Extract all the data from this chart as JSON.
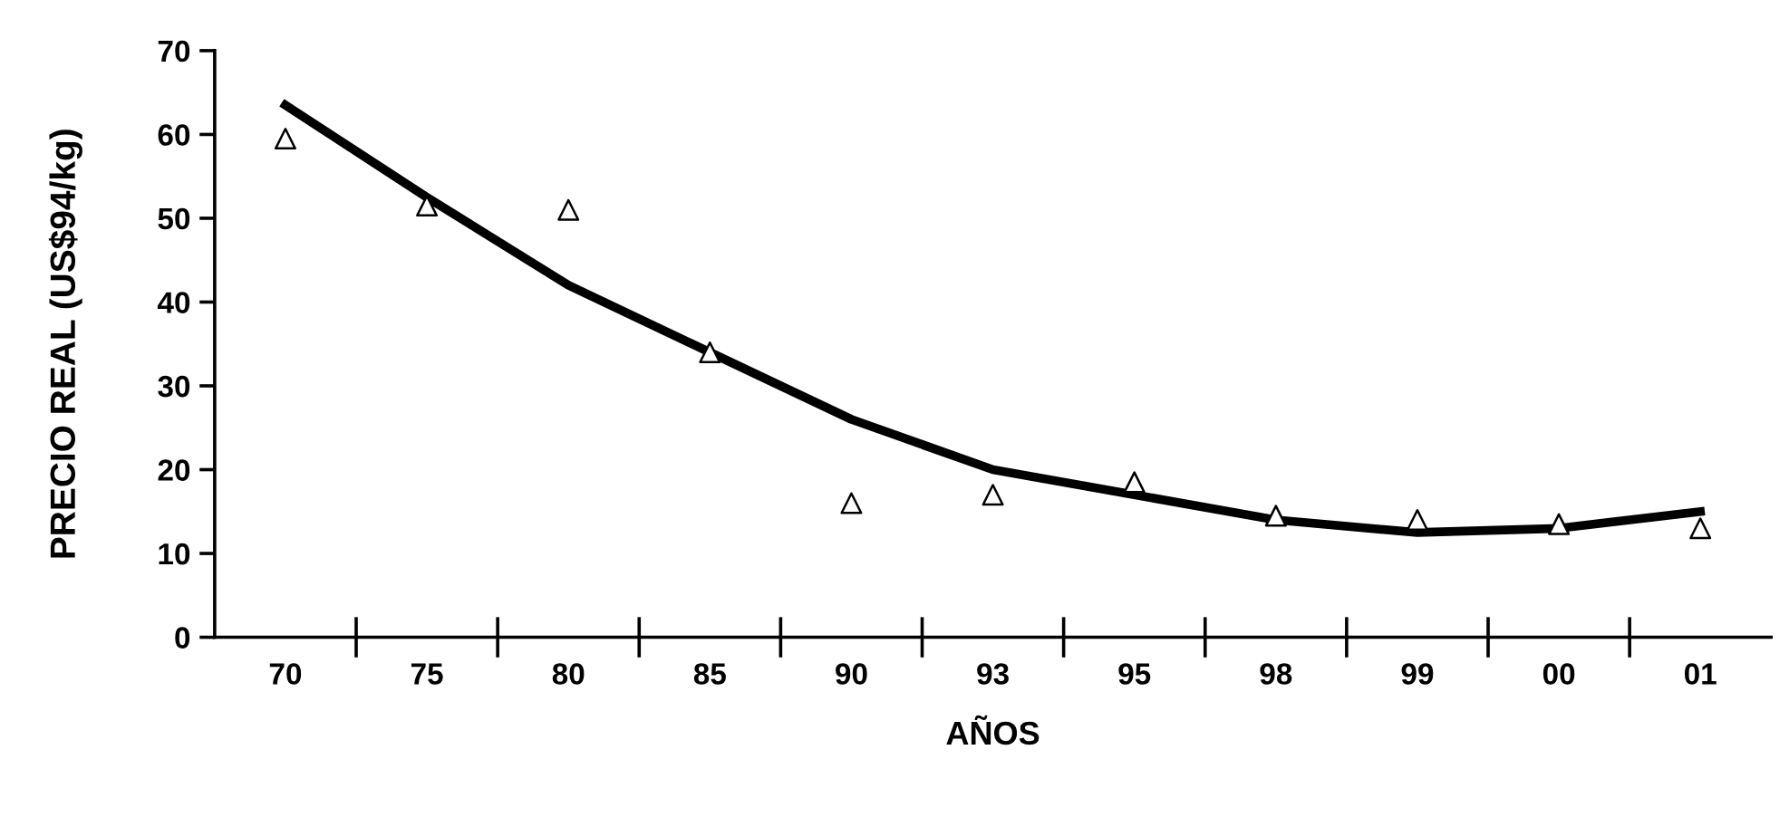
{
  "chart_data": {
    "type": "line",
    "xlabel": "AÑOS",
    "ylabel": "PRECIO REAL (US$94/kg)",
    "categories": [
      "70",
      "75",
      "80",
      "85",
      "90",
      "93",
      "95",
      "98",
      "99",
      "00",
      "01"
    ],
    "series": [
      {
        "type": "scatter",
        "color": "#000000",
        "marker": "triangle",
        "values": [
          59.5,
          51.5,
          51,
          34,
          16,
          17,
          18.5,
          14.5,
          14,
          13.5,
          13
        ]
      },
      {
        "color": "#000000",
        "line_style": "solid",
        "values": [
          63.5,
          52.5,
          42,
          34,
          26,
          20,
          17,
          14,
          12.5,
          13,
          15
        ]
      }
    ],
    "ylim": [
      0,
      70
    ],
    "yticks": [
      0,
      10,
      20,
      30,
      40,
      50,
      60,
      70
    ],
    "grid": false,
    "legend": false
  }
}
